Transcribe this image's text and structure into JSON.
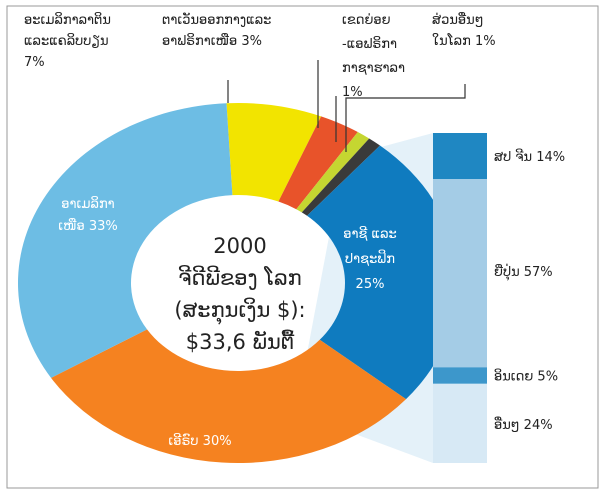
{
  "chart_data": [
    {
      "type": "donut",
      "center_text": [
        "2000",
        "ຈີດີພີຂອງ ໂລກ",
        "(ສະກຸນເງິນ $):",
        "$33,6 ພັນຕື້"
      ],
      "labels": [
        [
          "ອະເມລິກາລາຕິນ",
          "ແລະແຄລິບບຽນ",
          "7%"
        ],
        [
          "ຕາເວັນອອກກາງແລະ",
          "ອາຟຣິກາເໜືອ 3%"
        ],
        [
          "ເຂດຍ່ອຍ",
          "-ແອຟຣິກາ",
          "ກາຊາຮາລາ",
          "1%"
        ],
        [
          "ສ່ວນອື່ນໆ",
          "ໃນໂລກ 1%"
        ],
        [
          "ອາຊີ ແລະ",
          "ປາຊະຟິກ",
          "25%"
        ],
        [
          "ເອີຣົບ 30%"
        ],
        [
          "ອາເມລິກາ",
          "ເໜືອ 33%"
        ]
      ],
      "values": [
        7,
        3,
        1,
        1,
        25,
        30,
        33
      ],
      "colors": [
        "#f2e400",
        "#e8532a",
        "#c5d631",
        "#3a3a3a",
        "#0f7bbf",
        "#f58220",
        "#6dbde4"
      ]
    },
    {
      "type": "stacked-bar",
      "labels": [
        "ສປ ຈີນ 14%",
        "ຍີ່ປຸ່ນ 57%",
        "ອິນເດຍ 5%",
        "ອື່ນໆ 24%"
      ],
      "values": [
        14,
        57,
        5,
        24
      ],
      "colors": [
        "#1f87c2",
        "#a4cce6",
        "#3d97cb",
        "#d7e9f5"
      ]
    }
  ]
}
